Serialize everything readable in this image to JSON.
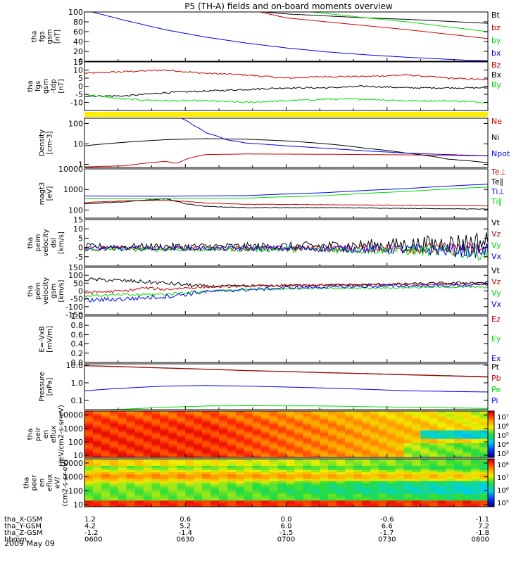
{
  "title": "P5 (TH-A) fields and on-board moments overview",
  "date": "2009 May 09",
  "time_labels": [
    "0600",
    "0630",
    "0700",
    "0730",
    "0800"
  ],
  "x_axis_rows": [
    {
      "label": "tha_X-GSM",
      "values": [
        "1.2",
        "0.6",
        "0.0",
        "-0.6",
        "-1.1"
      ]
    },
    {
      "label": "tha_Y-GSM",
      "values": [
        "4.2",
        "5.2",
        "6.0",
        "6.6",
        "7.2"
      ]
    },
    {
      "label": "tha_Z-GSM",
      "values": [
        "-1.2",
        "-1.4",
        "-1.5",
        "-1.7",
        "-1.8"
      ]
    },
    {
      "label": "hhmm",
      "values": [
        "0600",
        "0630",
        "0700",
        "0730",
        "0800"
      ]
    }
  ],
  "colors": {
    "black": "#000000",
    "red": "#cc0000",
    "green": "#00dd00",
    "blue": "#0000ee",
    "yellow": "#ffee00"
  },
  "chart_data": [
    {
      "type": "line",
      "id": "fgs_gsm",
      "ylabel": [
        "tha",
        "fgs",
        "gsm",
        "[nT]"
      ],
      "ylim": [
        0,
        100
      ],
      "ticks": [
        0,
        20,
        40,
        60,
        80,
        100
      ],
      "grid": false,
      "series": [
        {
          "name": "Bt",
          "color": "#000000",
          "x": [
            0.43,
            0.5,
            0.6,
            0.7,
            0.8,
            0.9,
            1.0
          ],
          "y": [
            101,
            96,
            92,
            88,
            85,
            81,
            77
          ]
        },
        {
          "name": "bz",
          "color": "#cc0000",
          "x": [
            0.43,
            0.5,
            0.6,
            0.7,
            0.8,
            0.9,
            1.0
          ],
          "y": [
            101,
            88,
            80,
            72,
            64,
            55,
            46
          ]
        },
        {
          "name": "by",
          "color": "#00dd00",
          "x": [
            0.55,
            0.6,
            0.7,
            0.8,
            0.9,
            1.0
          ],
          "y": [
            101,
            97,
            88,
            80,
            70,
            60
          ]
        },
        {
          "name": "bx",
          "color": "#0000ee",
          "x": [
            0.0,
            0.1,
            0.2,
            0.3,
            0.4,
            0.5,
            0.6,
            0.7,
            0.8,
            0.9,
            0.95,
            1.0
          ],
          "y": [
            104,
            83,
            64,
            49,
            37,
            27,
            19,
            13,
            8,
            4,
            2,
            1
          ]
        }
      ]
    },
    {
      "type": "line",
      "id": "fgs_tdp",
      "ylabel": [
        "tha",
        "fgs",
        "gsm",
        "-tdp",
        "[nT]"
      ],
      "ylim": [
        -15,
        15
      ],
      "ticks": [
        -10,
        -5,
        0,
        5,
        10,
        15
      ],
      "grid": false,
      "series": [
        {
          "name": "Bz",
          "color": "#cc0000",
          "noise": 0.5,
          "x": [
            0.0,
            0.1,
            0.2,
            0.25,
            0.3,
            0.4,
            0.5,
            0.6,
            0.7,
            0.8,
            0.9,
            1.0
          ],
          "y": [
            8,
            9,
            10,
            9,
            8,
            7,
            5,
            6,
            6,
            7,
            5,
            4
          ]
        },
        {
          "name": "Bx",
          "color": "#000000",
          "noise": 0.5,
          "x": [
            0.0,
            0.1,
            0.2,
            0.3,
            0.4,
            0.5,
            0.6,
            0.7,
            0.8,
            0.9,
            1.0
          ],
          "y": [
            -6,
            -6,
            -4,
            -3,
            -2,
            -1,
            -1,
            0,
            -1,
            -1,
            -1
          ]
        },
        {
          "name": "By",
          "color": "#00dd00",
          "noise": 0.5,
          "x": [
            0.0,
            0.1,
            0.2,
            0.3,
            0.4,
            0.5,
            0.6,
            0.7,
            0.8,
            0.9,
            1.0
          ],
          "y": [
            -5,
            -8,
            -9,
            -9,
            -10,
            -9,
            -8,
            -8,
            -9,
            -9,
            -10
          ]
        }
      ]
    },
    {
      "type": "line",
      "id": "density",
      "ylabel": [
        "Density",
        "[cm-3]"
      ],
      "scale": "log",
      "ylim": [
        0.7,
        180
      ],
      "ticks": [
        1,
        10,
        100
      ],
      "grid": false,
      "series": [
        {
          "name": "Ne",
          "color": "#cc0000",
          "x": [
            0.0,
            0.1,
            0.2,
            0.23,
            0.26,
            0.3,
            0.4,
            0.6,
            0.8,
            1.0
          ],
          "y": [
            0.75,
            0.85,
            1.4,
            1.1,
            2.0,
            3.0,
            3.2,
            3.1,
            2.9,
            2.6
          ]
        },
        {
          "name": "Ni",
          "color": "#000000",
          "x": [
            0.0,
            0.1,
            0.2,
            0.3,
            0.4,
            0.5,
            0.6,
            0.7,
            0.8,
            0.9,
            1.0
          ],
          "y": [
            8,
            12,
            16,
            18,
            17,
            14,
            10,
            6,
            3.5,
            1.8,
            1.2
          ]
        },
        {
          "name": "Npot",
          "color": "#0000ee",
          "x": [
            0.24,
            0.27,
            0.3,
            0.35,
            0.4,
            0.5,
            0.6,
            0.7,
            0.8,
            0.9,
            1.0
          ],
          "y": [
            180,
            80,
            35,
            16,
            11,
            8,
            6,
            4.5,
            3.5,
            3,
            2.6
          ]
        }
      ]
    },
    {
      "type": "line",
      "id": "temperature",
      "ylabel": [
        "magt3",
        "[eV]"
      ],
      "scale": "log",
      "ylim": [
        40,
        10000
      ],
      "ticks": [
        100,
        1000,
        10000
      ],
      "tick_labels": [
        "100",
        "1000",
        "10000"
      ],
      "grid": false,
      "series": [
        {
          "name": "Te⊥",
          "color": "#cc0000",
          "noise": 0.02,
          "x": [
            0.0,
            0.1,
            0.2,
            0.3,
            0.4,
            0.6,
            0.8,
            1.0
          ],
          "y": [
            230,
            280,
            300,
            220,
            190,
            180,
            170,
            160
          ]
        },
        {
          "name": "Te∥",
          "color": "#000000",
          "noise": 0.03,
          "x": [
            0.0,
            0.1,
            0.2,
            0.25,
            0.3,
            0.4,
            0.6,
            0.8,
            1.0
          ],
          "y": [
            200,
            250,
            350,
            200,
            150,
            130,
            130,
            120,
            110
          ]
        },
        {
          "name": "Ti⊥",
          "color": "#0000ee",
          "x": [
            0.0,
            0.2,
            0.4,
            0.6,
            0.8,
            1.0
          ],
          "y": [
            480,
            470,
            500,
            700,
            1100,
            1800
          ]
        },
        {
          "name": "Ti∥",
          "color": "#00dd00",
          "x": [
            0.0,
            0.2,
            0.4,
            0.6,
            0.8,
            1.0
          ],
          "y": [
            350,
            360,
            380,
            500,
            800,
            1300
          ]
        }
      ]
    },
    {
      "type": "line",
      "id": "peim_dsl",
      "ylabel": [
        "tha",
        "peim",
        "velocity",
        "dsl",
        "[km/s]"
      ],
      "ylim": [
        -10,
        15
      ],
      "ticks": [
        -5,
        0,
        5,
        10,
        15
      ],
      "grid": false,
      "series": [
        {
          "name": "Vt",
          "color": "#000000",
          "noise": 1.8,
          "x": [
            0.0,
            0.5,
            0.8,
            1.0
          ],
          "y": [
            0.5,
            0.5,
            1.5,
            3
          ]
        },
        {
          "name": "Vz",
          "color": "#cc0000",
          "noise": 1.2,
          "x": [
            0.0,
            0.5,
            0.8,
            1.0
          ],
          "y": [
            -0.5,
            -0.5,
            -0.5,
            -1
          ]
        },
        {
          "name": "Vy",
          "color": "#00dd00",
          "noise": 1.2,
          "x": [
            0.0,
            0.5,
            0.8,
            1.0
          ],
          "y": [
            -1,
            -1,
            -1.5,
            -3
          ]
        },
        {
          "name": "Vx",
          "color": "#0000ee",
          "noise": 1.2,
          "x": [
            0.0,
            0.5,
            0.8,
            1.0
          ],
          "y": [
            -0.5,
            -0.5,
            -1,
            -2
          ]
        }
      ]
    },
    {
      "type": "line",
      "id": "peim_gsm",
      "ylabel": [
        "tha",
        "peim",
        "velocity",
        "gsm",
        "[km/s]"
      ],
      "ylim": [
        -150,
        150
      ],
      "ticks": [
        -150,
        -100,
        -50,
        0,
        50,
        100,
        150
      ],
      "grid": false,
      "series": [
        {
          "name": "Vt",
          "color": "#000000",
          "noise": 8,
          "x": [
            0.0,
            0.1,
            0.2,
            0.3,
            0.5,
            0.7,
            0.9,
            1.0
          ],
          "y": [
            75,
            65,
            50,
            30,
            35,
            40,
            50,
            55
          ]
        },
        {
          "name": "Vz",
          "color": "#cc0000",
          "noise": 6,
          "x": [
            0.0,
            0.1,
            0.15,
            0.2,
            0.25,
            0.3,
            0.5,
            0.7,
            0.9,
            1.0
          ],
          "y": [
            -10,
            0,
            20,
            10,
            20,
            25,
            35,
            40,
            45,
            45
          ]
        },
        {
          "name": "Vy",
          "color": "#00dd00",
          "noise": 6,
          "x": [
            0.0,
            0.1,
            0.2,
            0.3,
            0.5,
            0.7,
            0.9,
            1.0
          ],
          "y": [
            -30,
            -25,
            -20,
            0,
            15,
            20,
            25,
            25
          ]
        },
        {
          "name": "Vx",
          "color": "#0000ee",
          "noise": 10,
          "x": [
            0.0,
            0.1,
            0.2,
            0.3,
            0.5,
            0.7,
            0.9,
            1.0
          ],
          "y": [
            -60,
            -50,
            -35,
            -5,
            20,
            30,
            35,
            40
          ]
        }
      ]
    },
    {
      "type": "line",
      "id": "efield",
      "ylabel": [
        "E=-VxB",
        "[mV/m]"
      ],
      "ylim": [
        0,
        1
      ],
      "ticks": [
        0.0,
        0.2,
        0.4,
        0.6,
        0.8,
        1.0
      ],
      "tick_labels": [
        "0.0",
        "0.2",
        "0.4",
        "0.6",
        "0.8",
        "1.0"
      ],
      "grid": false,
      "series": [
        {
          "name": "Ez",
          "color": "#cc0000",
          "x": [],
          "y": []
        },
        {
          "name": "Ey",
          "color": "#00dd00",
          "x": [],
          "y": []
        },
        {
          "name": "Ex",
          "color": "#0000ee",
          "x": [],
          "y": []
        }
      ]
    },
    {
      "type": "line",
      "id": "pressure",
      "ylabel": [
        "Pressure",
        "[nPa]"
      ],
      "scale": "log",
      "ylim": [
        0.03,
        12
      ],
      "ticks": [
        0.1,
        1.0,
        10.0
      ],
      "tick_labels": [
        "0.1",
        "1.0",
        "10.0"
      ],
      "grid": false,
      "series": [
        {
          "name": "Pt",
          "color": "#000000",
          "x": [
            0.0,
            0.2,
            0.4,
            0.6,
            0.8,
            1.0
          ],
          "y": [
            9.5,
            7,
            5,
            3.8,
            2.9,
            2.2
          ]
        },
        {
          "name": "Pb",
          "color": "#cc0000",
          "x": [
            0.0,
            0.2,
            0.4,
            0.6,
            0.8,
            1.0
          ],
          "y": [
            9.3,
            6.8,
            4.9,
            3.7,
            2.8,
            2.1
          ]
        },
        {
          "name": "Pe",
          "color": "#00dd00",
          "x": [
            0.0,
            0.1,
            0.2,
            0.3,
            0.4,
            0.6,
            0.8,
            1.0
          ],
          "y": [
            0.028,
            0.032,
            0.04,
            0.048,
            0.05,
            0.048,
            0.04,
            0.035
          ]
        },
        {
          "name": "Pi",
          "color": "#0000ee",
          "x": [
            0.0,
            0.1,
            0.2,
            0.3,
            0.4,
            0.6,
            0.8,
            1.0
          ],
          "y": [
            0.35,
            0.5,
            0.65,
            0.7,
            0.65,
            0.5,
            0.35,
            0.3
          ]
        }
      ]
    },
    {
      "type": "heatmap",
      "id": "peir",
      "ylabel": [
        "tha",
        "peir",
        "en",
        "eflux",
        "(eV/cm2-s-sr-eV)"
      ],
      "scale": "log",
      "ylim": [
        7,
        20000
      ],
      "ticks": [
        10,
        100,
        1000,
        10000
      ],
      "tick_labels": [
        "10",
        "100",
        "1000",
        "10000"
      ],
      "colorbar": {
        "ticks": [
          "10⁷",
          "10⁶",
          "10⁵",
          "10⁴",
          "10³"
        ]
      }
    },
    {
      "type": "heatmap",
      "id": "peer",
      "ylabel": [
        "tha",
        "peer",
        "en",
        "eflux",
        "eV/",
        "(cm2-s-sr-eV)"
      ],
      "scale": "log",
      "ylim": [
        7,
        20000
      ],
      "ticks": [
        10,
        100,
        1000,
        10000
      ],
      "tick_labels": [
        "10",
        "100",
        "1000",
        "10000"
      ],
      "colorbar": {
        "ticks": [
          "10⁸",
          "10⁷",
          "10⁶",
          "10⁵"
        ]
      }
    }
  ]
}
